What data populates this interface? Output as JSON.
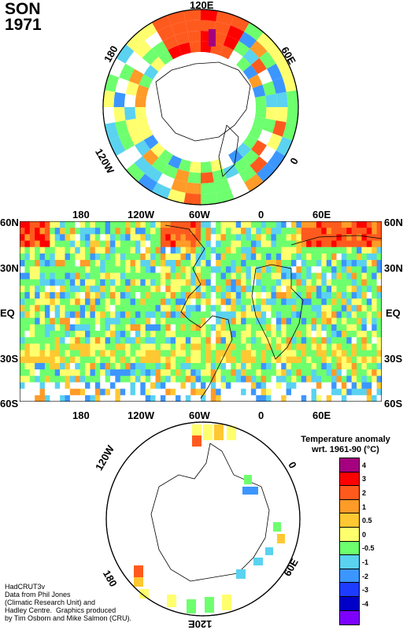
{
  "header": {
    "season": "SON",
    "year": "1971"
  },
  "north_polar": {
    "labels": {
      "top": "120E",
      "left": "180",
      "right": "60E",
      "lower_left": "120W",
      "lower_right": "0"
    }
  },
  "equatorial_map": {
    "top_lon_labels": [
      "180",
      "120W",
      "60W",
      "0",
      "60E"
    ],
    "bottom_lon_labels": [
      "180",
      "120W",
      "60W",
      "0",
      "60E"
    ],
    "lat_labels_left": [
      "60N",
      "30N",
      "EQ",
      "30S",
      "60S"
    ],
    "lat_labels_right": [
      "60N",
      "30N",
      "EQ",
      "30S",
      "60S"
    ]
  },
  "south_polar": {
    "labels": {
      "upper_left": "120W",
      "upper_right": "0",
      "lower_left": "180",
      "lower_right": "60E",
      "bottom": "120E"
    }
  },
  "legend": {
    "title_line1": "Temperature anomaly",
    "title_line2": "wrt. 1961-90  (°C)",
    "entries": [
      {
        "label": "4",
        "color": "#a5007f"
      },
      {
        "label": "3",
        "color": "#ff0000"
      },
      {
        "label": "2",
        "color": "#ff5a1e"
      },
      {
        "label": "1",
        "color": "#ff9b28"
      },
      {
        "label": "0.5",
        "color": "#ffc832"
      },
      {
        "label": "0",
        "color": "#ffff6e"
      },
      {
        "label": "-0.5",
        "color": "#6eff6e"
      },
      {
        "label": "-1",
        "color": "#5ad2f0"
      },
      {
        "label": "-2",
        "color": "#3c96ff"
      },
      {
        "label": "-3",
        "color": "#1e3cff"
      },
      {
        "label": "-4",
        "color": "#0000c8"
      },
      {
        "label": "",
        "color": "#7d00ff"
      }
    ]
  },
  "credit": {
    "lines": "HadCRUT3v\nData from Phil Jones\n(Climatic Research Unit) and\nHadley Centre.  Graphics produced\nby Tim Osborn and Mike Salmon (CRU)."
  },
  "colors": {
    "land_outline": "#000000",
    "missing": "#ffffff",
    "warm": "#ff9b28",
    "cool": "#5ad2f0"
  }
}
